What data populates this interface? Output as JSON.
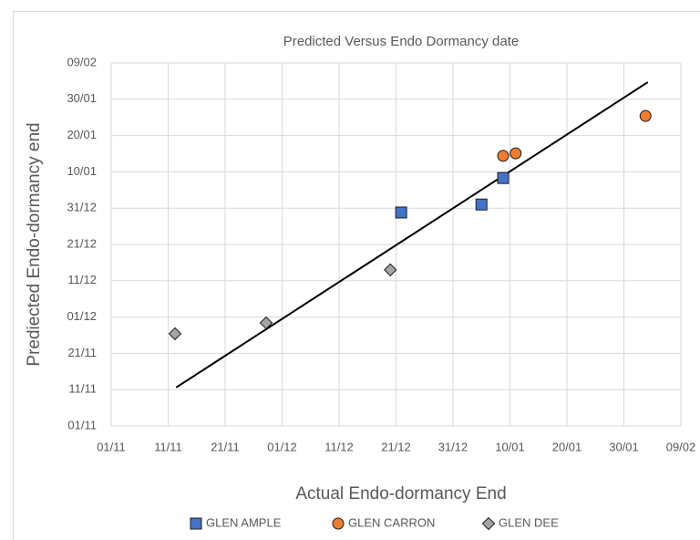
{
  "chart_data": {
    "type": "scatter",
    "title": "Predicted Versus Endo Dormancy date",
    "x_label": "Actual Endo-dormancy End",
    "y_label": "Prediected Endo-dormancy end",
    "xlim": [
      0,
      100
    ],
    "ylim": [
      0,
      100
    ],
    "xticks": [
      {
        "value": 0,
        "label": "01/11"
      },
      {
        "value": 10,
        "label": "11/11"
      },
      {
        "value": 20,
        "label": "21/11"
      },
      {
        "value": 30,
        "label": "01/12"
      },
      {
        "value": 40,
        "label": "11/12"
      },
      {
        "value": 50,
        "label": "21/12"
      },
      {
        "value": 60,
        "label": "31/12"
      },
      {
        "value": 70,
        "label": "10/01"
      },
      {
        "value": 80,
        "label": "20/01"
      },
      {
        "value": 90,
        "label": "30/01"
      },
      {
        "value": 100,
        "label": "09/02"
      }
    ],
    "yticks": [
      {
        "value": 0,
        "label": "01/11"
      },
      {
        "value": 10,
        "label": "11/11"
      },
      {
        "value": 20,
        "label": "21/11"
      },
      {
        "value": 30,
        "label": "01/12"
      },
      {
        "value": 40,
        "label": "11/12"
      },
      {
        "value": 50,
        "label": "21/12"
      },
      {
        "value": 60,
        "label": "31/12"
      },
      {
        "value": 70,
        "label": "10/01"
      },
      {
        "value": 80,
        "label": "20/01"
      },
      {
        "value": 90,
        "label": "30/01"
      },
      {
        "value": 100,
        "label": "09/02"
      }
    ],
    "grid": true,
    "legend": "bottom",
    "series": [
      {
        "name": "GLEN AMPLE",
        "color": "#4472c4",
        "marker": "square",
        "x": [
          50.9,
          65,
          68.8
        ],
        "y": [
          58.8,
          61,
          68.3
        ]
      },
      {
        "name": "GLEN CARRON",
        "color": "#ed7d31",
        "marker": "circle",
        "x": [
          68.8,
          71,
          93.8
        ],
        "y": [
          74.4,
          75.1,
          85.4
        ]
      },
      {
        "name": "GLEN DEE",
        "color": "#a5a5a5",
        "marker": "diamond",
        "x": [
          11.2,
          27.2,
          49
        ],
        "y": [
          25.4,
          28.4,
          43
        ]
      }
    ],
    "trendline": {
      "color": "#000000",
      "x": [
        11.4,
        94.2
      ],
      "y": [
        10.6,
        94.7
      ]
    }
  }
}
